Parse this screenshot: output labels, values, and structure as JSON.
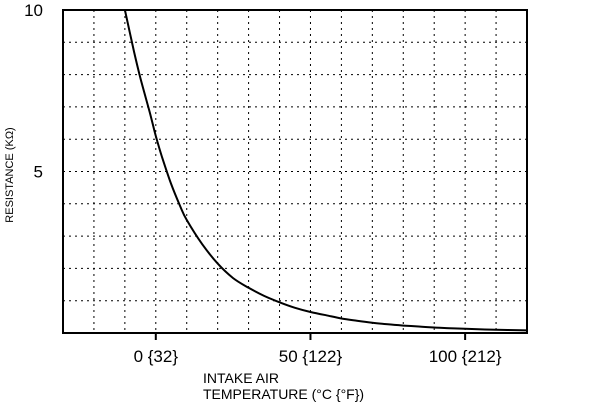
{
  "chart_data": {
    "type": "line",
    "title": "",
    "xlabel_line1": "INTAKE AIR",
    "xlabel_line2": "TEMPERATURE  (°C {°F})",
    "ylabel": "RESISTANCE (KΩ)",
    "xlim": [
      -30,
      120
    ],
    "ylim": [
      0,
      10
    ],
    "x_ticks": [
      {
        "value": 0,
        "label": "0 {32}"
      },
      {
        "value": 50,
        "label": "50 {122}"
      },
      {
        "value": 100,
        "label": "100 {212}"
      }
    ],
    "y_ticks": [
      {
        "value": 5,
        "label": "5"
      },
      {
        "value": 10,
        "label": "10"
      }
    ],
    "grid": true,
    "grid_x_step": 10,
    "grid_y_step": 1,
    "series": [
      {
        "x": [
          -10,
          -7,
          -5,
          -2,
          0,
          2,
          5,
          8,
          10,
          15,
          20,
          25,
          30,
          35,
          40,
          45,
          50,
          55,
          60,
          65,
          70,
          75,
          80,
          85,
          90,
          95,
          100,
          110,
          120
        ],
        "y": [
          10,
          8.7,
          7.9,
          6.85,
          6.1,
          5.45,
          4.6,
          3.9,
          3.5,
          2.75,
          2.15,
          1.7,
          1.4,
          1.15,
          0.95,
          0.78,
          0.65,
          0.55,
          0.45,
          0.38,
          0.32,
          0.27,
          0.23,
          0.2,
          0.17,
          0.15,
          0.13,
          0.1,
          0.08
        ]
      }
    ]
  }
}
